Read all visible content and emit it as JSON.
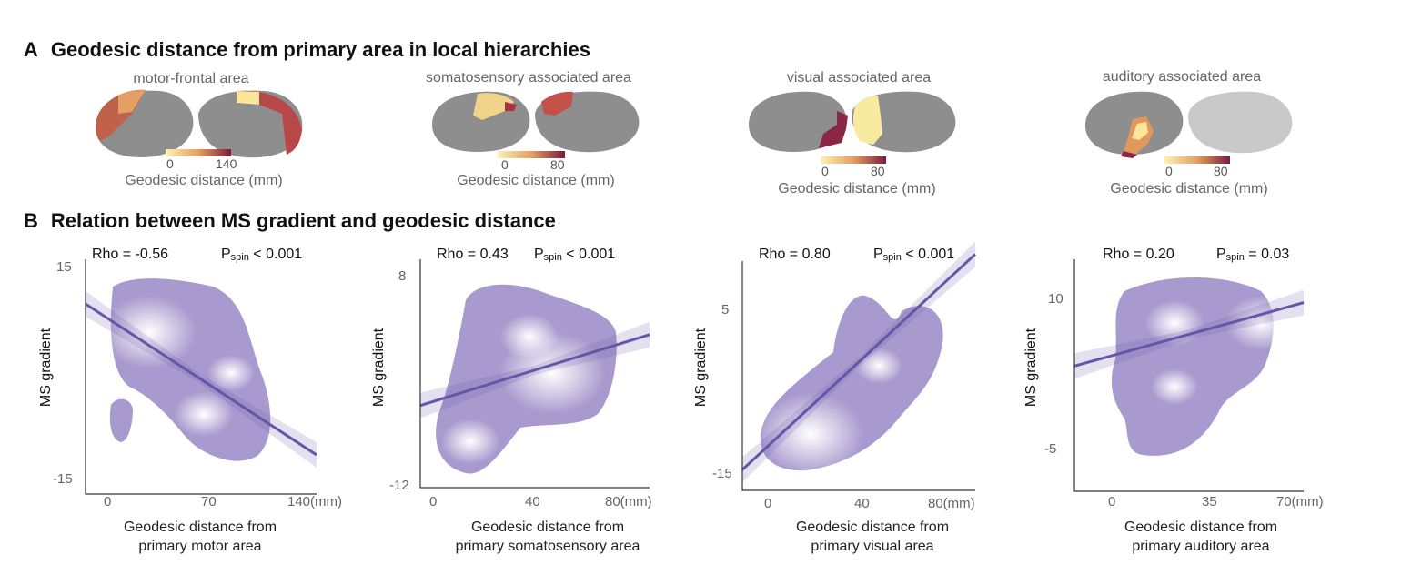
{
  "panel_a": {
    "letter": "A",
    "title": "Geodesic distance from primary area in local hierarchies"
  },
  "panel_b": {
    "letter": "B",
    "title": "Relation between MS gradient and geodesic distance"
  },
  "brains": [
    {
      "label": "motor-frontal area",
      "cbar_min": "0",
      "cbar_max": "140",
      "caption": "Geodesic distance (mm)"
    },
    {
      "label": "somatosensory associated area",
      "cbar_min": "0",
      "cbar_max": "80",
      "caption": "Geodesic distance (mm)"
    },
    {
      "label": "visual associated area",
      "cbar_min": "0",
      "cbar_max": "80",
      "caption": "Geodesic distance (mm)"
    },
    {
      "label": "auditory associated area",
      "cbar_min": "0",
      "cbar_max": "80",
      "caption": "Geodesic distance (mm)"
    }
  ],
  "colors": {
    "cbar_low": "#fbf2b4",
    "cbar_mid": "#e3a064",
    "cbar_high": "#7a1c3c",
    "density": "#8f7ec0",
    "line": "#6556a8",
    "brain_gray": "#8e8e8e"
  },
  "chart_data": [
    {
      "type": "scatter",
      "rho_label": "Rho = -0.56",
      "p_label": "P",
      "p_sub": "spin",
      "p_value": "< 0.001",
      "ylabel": "MS gradient",
      "xlabel_line1": "Geodesic distance from",
      "xlabel_line2": "primary motor area",
      "xticks": [
        "0",
        "70",
        "140(mm)"
      ],
      "yticks": [
        "15",
        "-15"
      ],
      "xlim": [
        -12,
        148
      ],
      "ylim": [
        -15,
        15
      ],
      "fit_line": {
        "x": [
          -12,
          148
        ],
        "y": [
          9.3,
          -10
        ]
      }
    },
    {
      "type": "scatter",
      "rho_label": "Rho = 0.43",
      "p_label": "P",
      "p_sub": "spin",
      "p_value": "< 0.001",
      "ylabel": "MS gradient",
      "xlabel_line1": "Geodesic distance from",
      "xlabel_line2": "primary somatosensory area",
      "xticks": [
        "0",
        "40",
        "80(mm)"
      ],
      "yticks": [
        "8",
        "-12"
      ],
      "xlim": [
        -8,
        86
      ],
      "ylim": [
        -12,
        8
      ],
      "fit_line": {
        "x": [
          -8,
          86
        ],
        "y": [
          -4.8,
          1.4
        ]
      }
    },
    {
      "type": "scatter",
      "rho_label": "Rho = 0.80",
      "p_label": "P",
      "p_sub": "spin",
      "p_value": "< 0.001",
      "ylabel": "MS gradient",
      "xlabel_line1": "Geodesic distance from",
      "xlabel_line2": "primary visual area",
      "xticks": [
        "0",
        "40",
        "80(mm)"
      ],
      "yticks": [
        "5",
        "-15"
      ],
      "xlim": [
        -11,
        87
      ],
      "ylim": [
        -15,
        5
      ],
      "fit_line": {
        "x": [
          -11,
          87
        ],
        "y": [
          -13.2,
          5.6
        ]
      }
    },
    {
      "type": "scatter",
      "rho_label": "Rho = 0.20",
      "p_label": "P",
      "p_sub": "spin",
      "p_value": "= 0.03",
      "ylabel": "MS gradient",
      "xlabel_line1": "Geodesic distance from",
      "xlabel_line2": "primary auditory area",
      "xticks": [
        "0",
        "35",
        "70(mm)"
      ],
      "yticks": [
        "10",
        "-5"
      ],
      "xlim": [
        -16,
        74
      ],
      "ylim": [
        -5,
        10
      ],
      "fit_line": {
        "x": [
          -16,
          74
        ],
        "y": [
          3.1,
          7.2
        ]
      }
    }
  ]
}
